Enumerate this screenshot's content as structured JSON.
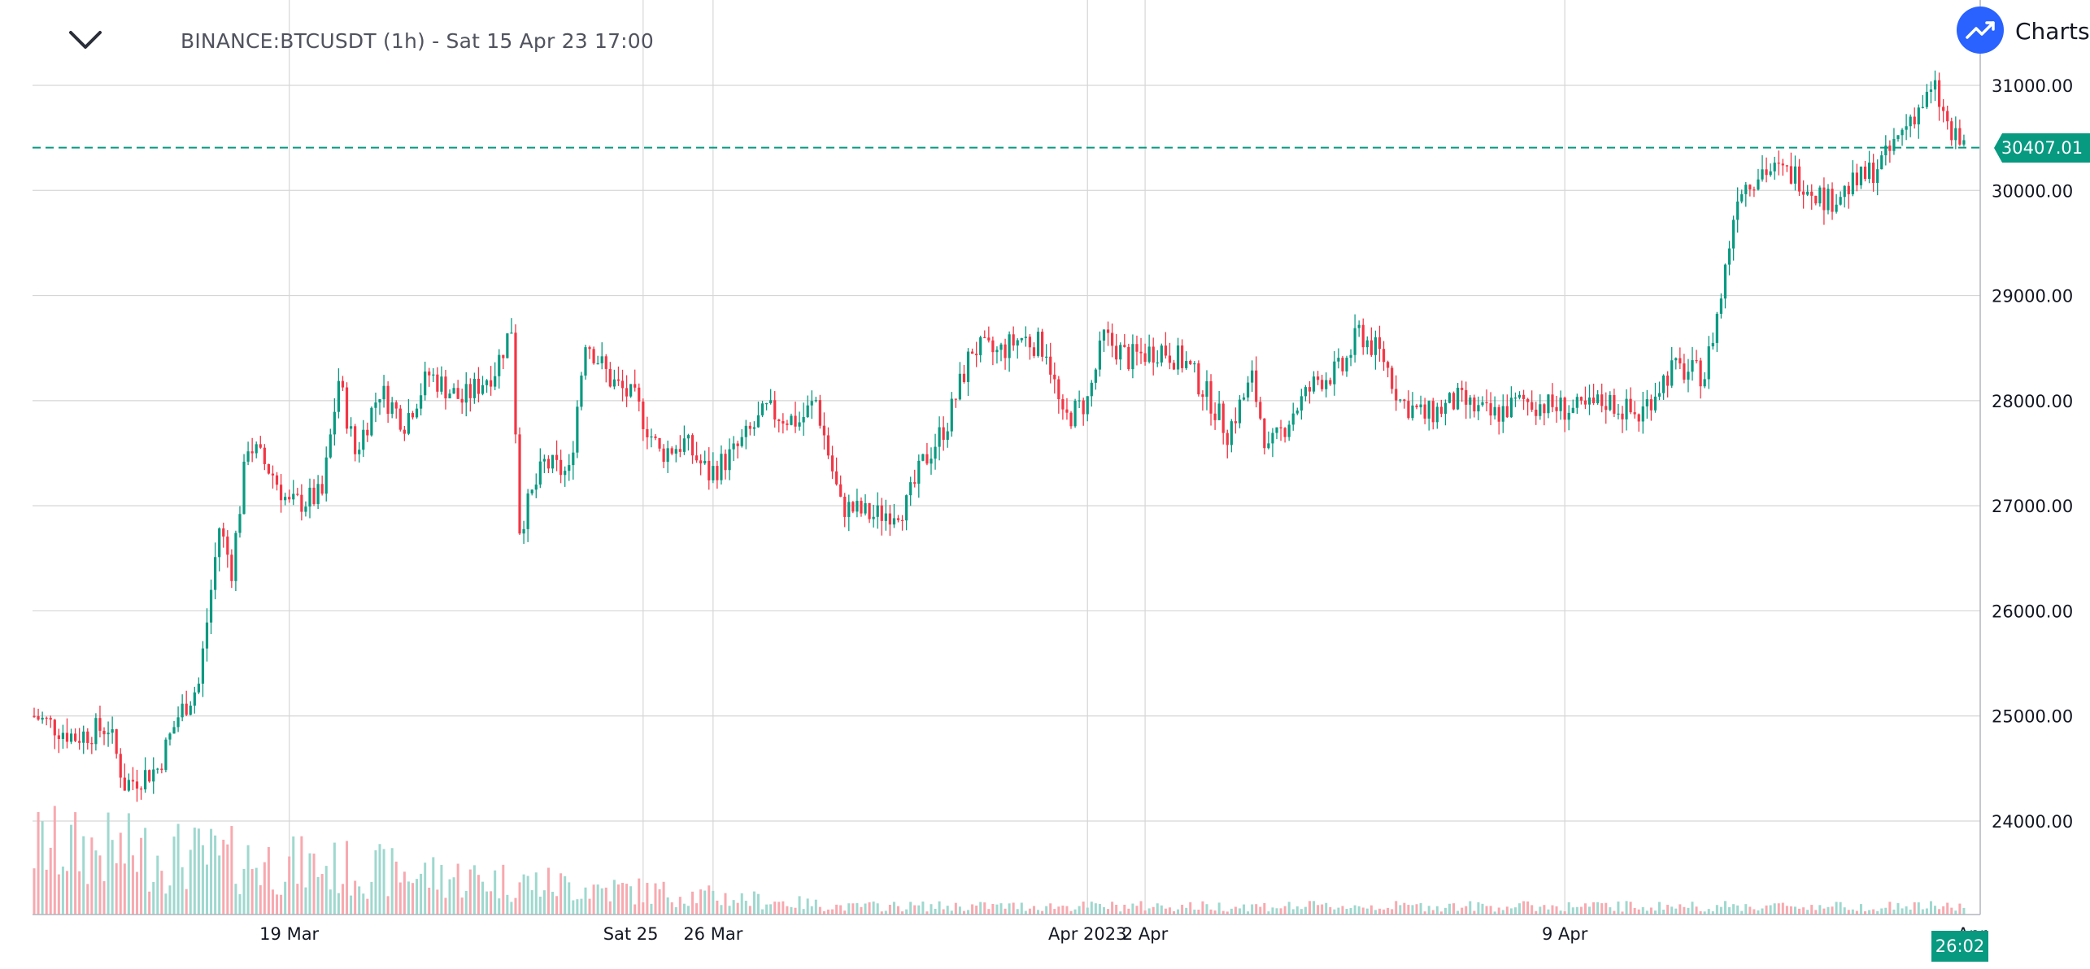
{
  "header": {
    "symbol_title": "BINANCE:BTCUSDT (1h) - Sat 15 Apr 23 17:00",
    "collapse_icon": "chevron-down-icon",
    "brand_label": "Charts p",
    "brand_icon": "trending-up-icon"
  },
  "price_line": {
    "label": "30407.01",
    "value": 30407.01,
    "color": "#089981"
  },
  "countdown": {
    "label": "26:02"
  },
  "colors": {
    "up": "#089981",
    "down": "#f23645",
    "up_volume": "#9fd8cf",
    "down_volume": "#f7a9af",
    "grid": "#d6d6d6",
    "brand": "#2962ff"
  },
  "chart_data": {
    "type": "candlestick",
    "symbol": "BINANCE:BTCUSDT",
    "interval": "1h",
    "ylim": [
      23300,
      31200
    ],
    "yticks": [
      {
        "value": 24000,
        "label": "24000.00"
      },
      {
        "value": 25000,
        "label": "25000.00"
      },
      {
        "value": 26000,
        "label": "26000.00"
      },
      {
        "value": 27000,
        "label": "27000.00"
      },
      {
        "value": 28000,
        "label": "28000.00"
      },
      {
        "value": 29000,
        "label": "29000.00"
      },
      {
        "value": 30000,
        "label": "30000.00"
      },
      {
        "value": 31000,
        "label": "31000.00"
      }
    ],
    "xticks": [
      {
        "index": 62,
        "label": "19 Mar"
      },
      {
        "index": 145,
        "label": "Sat 25"
      },
      {
        "index": 165,
        "label": "26 Mar"
      },
      {
        "index": 256,
        "label": "Apr 2023"
      },
      {
        "index": 270,
        "label": "2 Apr"
      },
      {
        "index": 372,
        "label": "9 Apr"
      },
      {
        "index": 471,
        "label": "Apr"
      }
    ],
    "vgrid_indices": [
      62,
      148,
      165,
      256,
      270,
      372
    ],
    "grid": true,
    "n_candles": 470,
    "closes": [
      [
        0,
        25000
      ],
      [
        10,
        24800
      ],
      [
        18,
        24900
      ],
      [
        22,
        24350
      ],
      [
        30,
        24500
      ],
      [
        35,
        25000
      ],
      [
        40,
        25300
      ],
      [
        45,
        26800
      ],
      [
        48,
        26400
      ],
      [
        52,
        27600
      ],
      [
        58,
        27300
      ],
      [
        62,
        27000
      ],
      [
        70,
        27100
      ],
      [
        74,
        28200
      ],
      [
        78,
        27500
      ],
      [
        84,
        28100
      ],
      [
        90,
        27800
      ],
      [
        96,
        28250
      ],
      [
        104,
        28000
      ],
      [
        112,
        28300
      ],
      [
        116,
        28700
      ],
      [
        118,
        26800
      ],
      [
        124,
        27400
      ],
      [
        130,
        27300
      ],
      [
        134,
        28600
      ],
      [
        140,
        28200
      ],
      [
        146,
        28000
      ],
      [
        152,
        27500
      ],
      [
        158,
        27600
      ],
      [
        164,
        27300
      ],
      [
        170,
        27500
      ],
      [
        178,
        27900
      ],
      [
        186,
        27800
      ],
      [
        190,
        28000
      ],
      [
        196,
        27000
      ],
      [
        204,
        26900
      ],
      [
        212,
        27000
      ],
      [
        216,
        27400
      ],
      [
        222,
        27800
      ],
      [
        228,
        28500
      ],
      [
        234,
        28450
      ],
      [
        240,
        28600
      ],
      [
        246,
        28500
      ],
      [
        250,
        27800
      ],
      [
        256,
        28000
      ],
      [
        260,
        28600
      ],
      [
        266,
        28400
      ],
      [
        274,
        28500
      ],
      [
        280,
        28350
      ],
      [
        286,
        28000
      ],
      [
        290,
        27700
      ],
      [
        296,
        28200
      ],
      [
        300,
        27500
      ],
      [
        306,
        27900
      ],
      [
        312,
        28200
      ],
      [
        318,
        28300
      ],
      [
        322,
        28650
      ],
      [
        328,
        28400
      ],
      [
        332,
        28000
      ],
      [
        338,
        27850
      ],
      [
        346,
        28000
      ],
      [
        354,
        27850
      ],
      [
        362,
        28000
      ],
      [
        368,
        27950
      ],
      [
        376,
        27900
      ],
      [
        382,
        28000
      ],
      [
        390,
        27850
      ],
      [
        394,
        28100
      ],
      [
        398,
        28300
      ],
      [
        406,
        28250
      ],
      [
        410,
        29000
      ],
      [
        414,
        30000
      ],
      [
        420,
        30200
      ],
      [
        428,
        30150
      ],
      [
        436,
        29900
      ],
      [
        444,
        30100
      ],
      [
        450,
        30300
      ],
      [
        456,
        30700
      ],
      [
        462,
        30950
      ],
      [
        466,
        30500
      ],
      [
        470,
        30407
      ]
    ]
  }
}
